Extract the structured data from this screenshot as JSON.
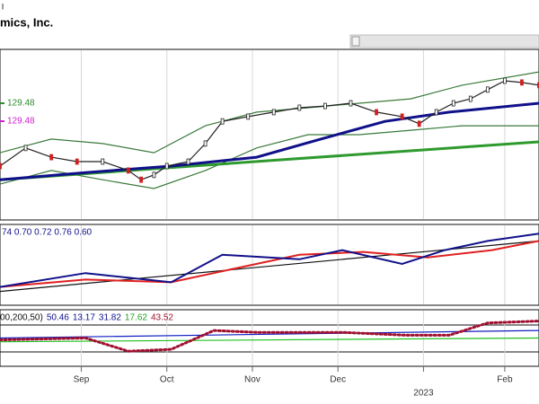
{
  "chart_data": [
    {
      "type": "line",
      "subtitle": "l",
      "title": "mics, Inc.",
      "legend": [
        {
          "label": "129.48",
          "color": "#2e8b2e"
        },
        {
          "label": "129.48",
          "color": "#d020d0"
        }
      ],
      "ylim": [
        85,
        135
      ],
      "series": [
        {
          "name": "Upper Band",
          "color": "#3a7a3a",
          "x": [
            0,
            12,
            24,
            36,
            48,
            60,
            72,
            84,
            96,
            108,
            126
          ],
          "values": [
            104.7,
            108.7,
            107.4,
            104.7,
            112.6,
            116.6,
            117.9,
            119.2,
            120.5,
            124.5,
            128.4
          ]
        },
        {
          "name": "Lower Band",
          "color": "#3a7a3a",
          "x": [
            0,
            12,
            24,
            36,
            48,
            60,
            72,
            84,
            96,
            108,
            126
          ],
          "values": [
            95.5,
            99.5,
            96.8,
            94.2,
            99.5,
            106.1,
            110,
            110,
            111.3,
            112.6,
            112.6
          ]
        },
        {
          "name": "MA200",
          "color": "#2e9a2e",
          "x": [
            0,
            63,
            126
          ],
          "values": [
            96.8,
            102.4,
            107.9
          ]
        },
        {
          "name": "MA50",
          "color": "#10108a",
          "x": [
            0,
            20,
            40,
            60,
            75,
            90,
            105,
            126
          ],
          "values": [
            96.8,
            98.9,
            100.8,
            103.4,
            108.7,
            113.9,
            116.6,
            119.2
          ]
        },
        {
          "name": "Close",
          "color": "#222222",
          "x": [
            0,
            6,
            12,
            18,
            24,
            30,
            33,
            36,
            39,
            44,
            48,
            52,
            58,
            64,
            70,
            76,
            82,
            88,
            94,
            98,
            102,
            106,
            110,
            114,
            118,
            122,
            126
          ],
          "values": [
            100.8,
            106.1,
            103.4,
            102.1,
            102.1,
            99.5,
            96.8,
            98.2,
            100.8,
            102.1,
            107.4,
            113.9,
            115.3,
            116.6,
            117.9,
            118.4,
            119.2,
            116.6,
            115.3,
            113.2,
            116.6,
            119.2,
            120.5,
            123.2,
            125.8,
            125.3,
            124.5
          ]
        }
      ]
    },
    {
      "type": "line",
      "legend_text": "74 0.70 0.72 0.76 0.60",
      "ylim": [
        0.4,
        0.85
      ],
      "series": [
        {
          "name": "Trend",
          "color": "#111111",
          "x": [
            0,
            126
          ],
          "values": [
            0.477,
            0.758
          ]
        },
        {
          "name": "Average",
          "color": "#e02020",
          "x": [
            0,
            20,
            40,
            55,
            70,
            85,
            100,
            115,
            126
          ],
          "values": [
            0.502,
            0.543,
            0.528,
            0.605,
            0.681,
            0.697,
            0.666,
            0.707,
            0.758
          ]
        },
        {
          "name": "Ratio",
          "color": "#10108a",
          "x": [
            0,
            20,
            40,
            52,
            70,
            80,
            94,
            104,
            114,
            126
          ],
          "values": [
            0.502,
            0.579,
            0.528,
            0.681,
            0.656,
            0.707,
            0.63,
            0.707,
            0.758,
            0.799
          ]
        }
      ]
    },
    {
      "type": "line",
      "legend_parts": [
        {
          "label": "00,200,50)",
          "color": "#111111"
        },
        {
          "label": "50.46",
          "color": "#10108a"
        },
        {
          "label": "13.17",
          "color": "#10108a"
        },
        {
          "label": "31.82",
          "color": "#10108a"
        },
        {
          "label": "17.62",
          "color": "#20a020"
        },
        {
          "label": "43.52",
          "color": "#a01030"
        }
      ],
      "ylim": [
        0,
        100
      ],
      "xlim": [
        0,
        126
      ],
      "xticks": [
        {
          "value": 19,
          "label": "Sep"
        },
        {
          "value": 39,
          "label": "Oct"
        },
        {
          "value": 59,
          "label": "Nov"
        },
        {
          "value": 79,
          "label": "Dec"
        },
        {
          "value": 99,
          "label": "2023"
        },
        {
          "value": 118,
          "label": "Feb"
        }
      ],
      "series": [
        {
          "name": "Green",
          "color": "#20c020",
          "x": [
            0,
            126
          ],
          "values": [
            43.3,
            50
          ]
        },
        {
          "name": "Blue",
          "color": "#1020c0",
          "x": [
            0,
            126
          ],
          "values": [
            50,
            63.3
          ]
        },
        {
          "name": "Dotted",
          "color": "#a01030",
          "dotted": true,
          "x": [
            0,
            20,
            30,
            40,
            50,
            60,
            80,
            95,
            105,
            114,
            126
          ],
          "values": [
            46.7,
            50,
            26.7,
            30,
            63.3,
            60,
            60,
            55,
            55,
            76.7,
            80
          ]
        }
      ]
    }
  ]
}
